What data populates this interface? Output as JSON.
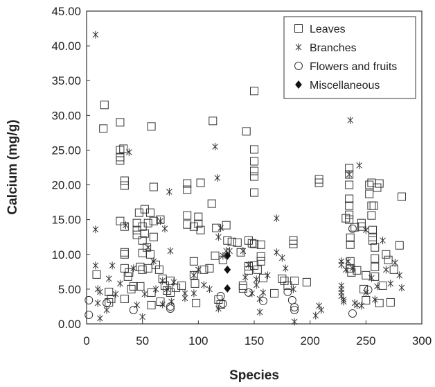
{
  "chart_data": {
    "type": "scatter",
    "xlabel": "Species",
    "ylabel": "Calcium (mg/g)",
    "xlim": [
      0,
      300
    ],
    "ylim": [
      0,
      45
    ],
    "x_ticks": [
      "0",
      "50",
      "100",
      "150",
      "200",
      "250",
      "300"
    ],
    "y_ticks": [
      "0.00",
      "5.00",
      "10.00",
      "15.00",
      "20.00",
      "25.00",
      "30.00",
      "35.00",
      "40.00",
      "45.00"
    ],
    "grid": false,
    "legend_position": "top-right",
    "series": [
      {
        "name": "Leaves",
        "marker": "square",
        "points": [
          [
            9,
            7.1
          ],
          [
            16,
            31.5
          ],
          [
            15,
            28.1
          ],
          [
            20,
            4.6
          ],
          [
            20,
            3.1
          ],
          [
            22,
            3.6
          ],
          [
            30,
            29
          ],
          [
            30,
            25
          ],
          [
            30,
            24
          ],
          [
            30,
            23.5
          ],
          [
            33,
            25.2
          ],
          [
            34,
            20.6
          ],
          [
            34,
            19.9
          ],
          [
            34,
            14
          ],
          [
            34,
            10.3
          ],
          [
            34,
            10
          ],
          [
            34,
            8
          ],
          [
            34,
            3.6
          ],
          [
            37,
            6.8
          ],
          [
            38,
            7.4
          ],
          [
            40,
            5
          ],
          [
            42,
            5.4
          ],
          [
            30,
            14.8
          ],
          [
            45,
            14.5
          ],
          [
            45,
            13.5
          ],
          [
            45,
            12.8
          ],
          [
            47,
            16
          ],
          [
            48,
            8.2
          ],
          [
            48,
            5.4
          ],
          [
            50,
            14
          ],
          [
            50,
            12
          ],
          [
            50,
            10.2
          ],
          [
            50,
            7.8
          ],
          [
            52,
            16.5
          ],
          [
            52,
            13
          ],
          [
            54,
            11
          ],
          [
            55,
            14.5
          ],
          [
            55,
            8
          ],
          [
            57,
            16
          ],
          [
            57,
            10
          ],
          [
            58,
            4.5
          ],
          [
            58,
            2.7
          ],
          [
            58,
            28.4
          ],
          [
            60,
            19.7
          ],
          [
            60,
            12.5
          ],
          [
            60,
            14.8
          ],
          [
            62,
            8.5
          ],
          [
            65,
            7.8
          ],
          [
            66,
            15
          ],
          [
            66,
            3.2
          ],
          [
            68,
            6.5
          ],
          [
            70,
            5.5
          ],
          [
            72,
            4.8
          ],
          [
            75,
            6.2
          ],
          [
            75,
            4.5
          ],
          [
            80,
            5.2
          ],
          [
            85,
            5.5
          ],
          [
            90,
            20.2
          ],
          [
            90,
            19.3
          ],
          [
            90,
            15.6
          ],
          [
            90,
            14.3
          ],
          [
            96,
            14
          ],
          [
            96,
            9
          ],
          [
            96,
            7
          ],
          [
            97,
            5.8
          ],
          [
            98,
            3
          ],
          [
            100,
            15.4
          ],
          [
            100,
            14.4
          ],
          [
            102,
            20.3
          ],
          [
            102,
            13.5
          ],
          [
            105,
            7.8
          ],
          [
            110,
            8
          ],
          [
            112,
            17.3
          ],
          [
            113,
            29.2
          ],
          [
            115,
            9.8
          ],
          [
            116,
            13.8
          ],
          [
            118,
            3.5
          ],
          [
            120,
            2.8
          ],
          [
            122,
            9.2
          ],
          [
            125,
            14.2
          ],
          [
            126,
            12
          ],
          [
            130,
            11.8
          ],
          [
            135,
            11.7
          ],
          [
            138,
            10.3
          ],
          [
            140,
            5.5
          ],
          [
            140,
            5.1
          ],
          [
            143,
            27.7
          ],
          [
            145,
            8.3
          ],
          [
            145,
            7.7
          ],
          [
            145,
            12
          ],
          [
            148,
            11.6
          ],
          [
            150,
            33.5
          ],
          [
            150,
            25.1
          ],
          [
            150,
            23.4
          ],
          [
            150,
            22
          ],
          [
            150,
            21.2
          ],
          [
            150,
            18.9
          ],
          [
            150,
            11.5
          ],
          [
            150,
            8.4
          ],
          [
            153,
            7.8
          ],
          [
            156,
            11.4
          ],
          [
            156,
            9.7
          ],
          [
            156,
            9
          ],
          [
            158,
            6.6
          ],
          [
            168,
            4.4
          ],
          [
            175,
            6.5
          ],
          [
            177,
            6.2
          ],
          [
            180,
            5.5
          ],
          [
            185,
            12
          ],
          [
            185,
            11.5
          ],
          [
            186,
            6.2
          ],
          [
            197,
            6
          ],
          [
            208,
            20.8
          ],
          [
            208,
            20.3
          ],
          [
            232,
            15.2
          ],
          [
            235,
            22.4
          ],
          [
            235,
            21.5
          ],
          [
            235,
            20
          ],
          [
            235,
            18
          ],
          [
            235,
            17
          ],
          [
            235,
            15.7
          ],
          [
            235,
            15
          ],
          [
            236,
            12.4
          ],
          [
            236,
            11.4
          ],
          [
            236,
            9
          ],
          [
            236,
            8
          ],
          [
            237,
            7.4
          ],
          [
            240,
            13.9
          ],
          [
            242,
            7.7
          ],
          [
            246,
            14.5
          ],
          [
            246,
            14
          ],
          [
            248,
            5
          ],
          [
            250,
            7
          ],
          [
            250,
            3.4
          ],
          [
            253,
            20
          ],
          [
            253,
            18.7
          ],
          [
            255,
            20.3
          ],
          [
            255,
            17
          ],
          [
            255,
            15.6
          ],
          [
            256,
            13.5
          ],
          [
            256,
            12.5
          ],
          [
            256,
            12
          ],
          [
            257,
            17
          ],
          [
            258,
            11
          ],
          [
            258,
            9.4
          ],
          [
            258,
            8.2
          ],
          [
            258,
            6.8
          ],
          [
            260,
            19.6
          ],
          [
            262,
            20.2
          ],
          [
            262,
            3
          ],
          [
            265,
            5.5
          ],
          [
            268,
            10
          ],
          [
            270,
            9.2
          ],
          [
            272,
            3.1
          ],
          [
            275,
            7.8
          ],
          [
            280,
            11.3
          ],
          [
            282,
            18.3
          ]
        ]
      },
      {
        "name": "Branches",
        "marker": "asterisk",
        "points": [
          [
            8,
            41.6
          ],
          [
            8,
            13.6
          ],
          [
            8,
            8.4
          ],
          [
            10,
            5
          ],
          [
            10,
            3
          ],
          [
            12,
            0.8
          ],
          [
            12,
            4.6
          ],
          [
            18,
            2
          ],
          [
            20,
            6.5
          ],
          [
            23,
            8.4
          ],
          [
            26,
            4.3
          ],
          [
            30,
            5.8
          ],
          [
            35,
            14.2
          ],
          [
            38,
            24.7
          ],
          [
            42,
            8
          ],
          [
            45,
            2.7
          ],
          [
            50,
            1
          ],
          [
            52,
            4.3
          ],
          [
            55,
            11
          ],
          [
            60,
            9
          ],
          [
            62,
            5
          ],
          [
            66,
            14.8
          ],
          [
            68,
            6.2
          ],
          [
            68,
            2.8
          ],
          [
            70,
            13.7
          ],
          [
            72,
            5
          ],
          [
            74,
            19
          ],
          [
            75,
            10.5
          ],
          [
            76,
            3.2
          ],
          [
            78,
            6
          ],
          [
            88,
            3.7
          ],
          [
            88,
            4.4
          ],
          [
            96,
            4.4
          ],
          [
            96,
            7
          ],
          [
            100,
            7.8
          ],
          [
            105,
            5.6
          ],
          [
            110,
            5
          ],
          [
            115,
            25.5
          ],
          [
            117,
            21
          ],
          [
            118,
            12.5
          ],
          [
            118,
            2.2
          ],
          [
            120,
            13.8
          ],
          [
            122,
            9.8
          ],
          [
            125,
            10.5
          ],
          [
            128,
            10.5
          ],
          [
            140,
            10.5
          ],
          [
            142,
            6.7
          ],
          [
            145,
            8.5
          ],
          [
            148,
            4.4
          ],
          [
            152,
            6.4
          ],
          [
            152,
            5.6
          ],
          [
            155,
            3.6
          ],
          [
            155,
            1.7
          ],
          [
            158,
            4.5
          ],
          [
            162,
            7
          ],
          [
            170,
            15.2
          ],
          [
            170,
            10.3
          ],
          [
            175,
            9.5
          ],
          [
            178,
            8
          ],
          [
            185,
            5
          ],
          [
            186,
            0.3
          ],
          [
            205,
            1.2
          ],
          [
            208,
            2.6
          ],
          [
            210,
            2
          ],
          [
            228,
            9
          ],
          [
            228,
            8.5
          ],
          [
            228,
            5.5
          ],
          [
            228,
            5
          ],
          [
            228,
            4.5
          ],
          [
            228,
            4
          ],
          [
            230,
            3.5
          ],
          [
            230,
            3.2
          ],
          [
            232,
            7.8
          ],
          [
            234,
            9
          ],
          [
            235,
            21.5
          ],
          [
            236,
            29.3
          ],
          [
            238,
            8
          ],
          [
            240,
            3
          ],
          [
            242,
            2.7
          ],
          [
            244,
            22.8
          ],
          [
            246,
            2.6
          ],
          [
            250,
            13.5
          ],
          [
            250,
            4.5
          ],
          [
            255,
            6.6
          ],
          [
            258,
            3.5
          ],
          [
            260,
            5.4
          ],
          [
            265,
            12
          ],
          [
            268,
            7.8
          ],
          [
            272,
            5.8
          ],
          [
            276,
            8.8
          ],
          [
            280,
            7
          ],
          [
            282,
            5.2
          ]
        ]
      },
      {
        "name": "Flowers and fruits",
        "marker": "circle",
        "points": [
          [
            2,
            3.4
          ],
          [
            2,
            1.3
          ],
          [
            18,
            3
          ],
          [
            42,
            2
          ],
          [
            75,
            2.5
          ],
          [
            75,
            2.2
          ],
          [
            120,
            4
          ],
          [
            122,
            2.9
          ],
          [
            145,
            4.5
          ],
          [
            158,
            3.3
          ],
          [
            180,
            4.6
          ],
          [
            184,
            3.4
          ],
          [
            186,
            2.4
          ],
          [
            186,
            2
          ],
          [
            238,
            13.7
          ],
          [
            238,
            1.5
          ],
          [
            252,
            4.9
          ]
        ]
      },
      {
        "name": "Miscellaneous",
        "marker": "diamond",
        "points": [
          [
            126,
            9.8
          ],
          [
            126,
            7.8
          ],
          [
            126,
            5.1
          ]
        ]
      }
    ]
  }
}
